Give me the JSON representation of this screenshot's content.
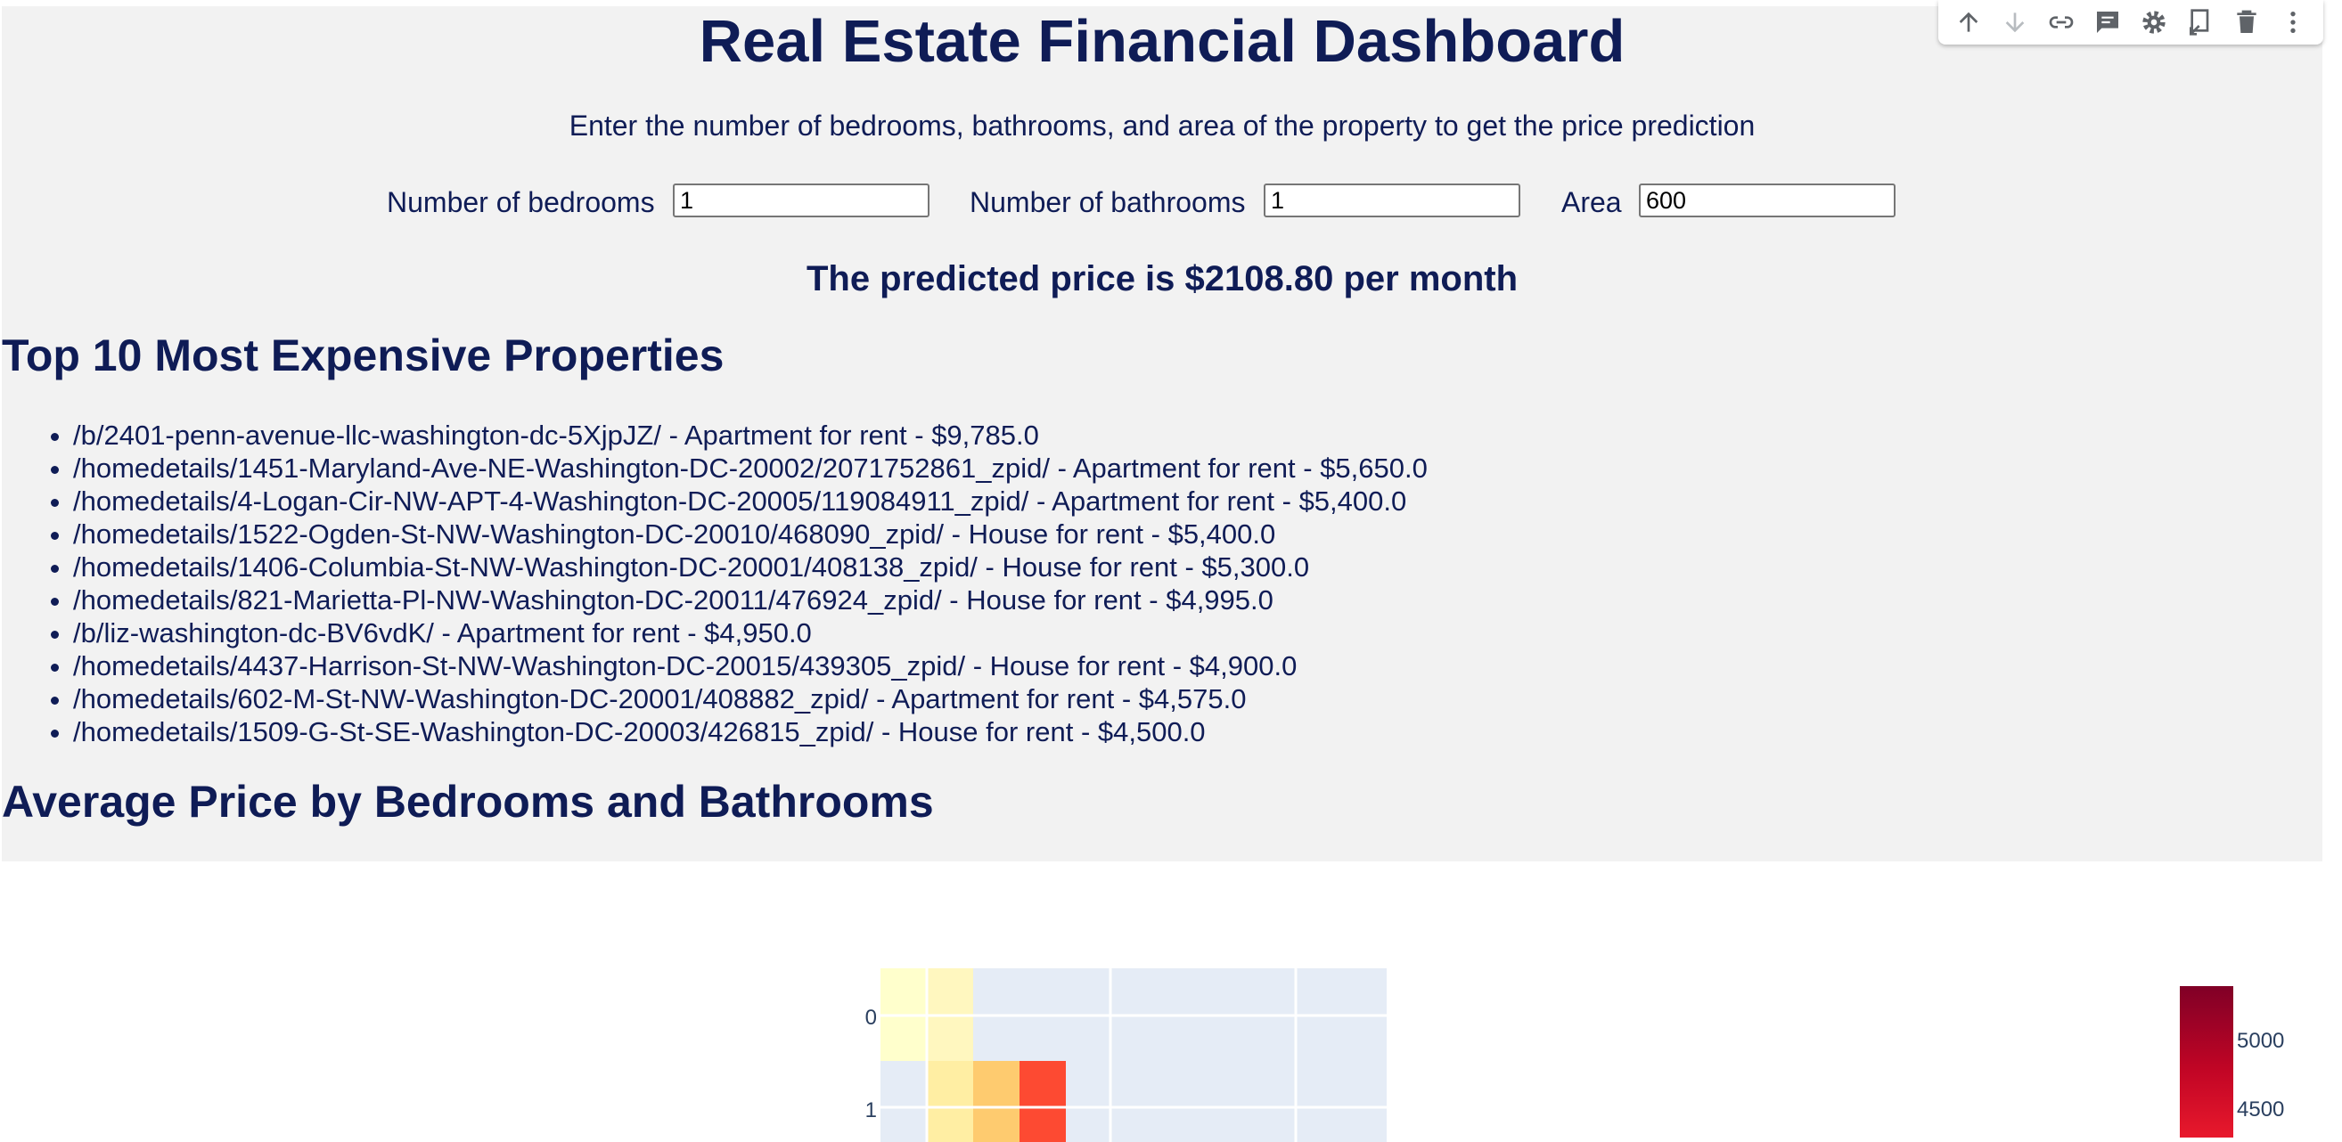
{
  "header": {
    "title": "Real Estate Financial Dashboard",
    "subtitle": "Enter the number of bedrooms, bathrooms, and area of the property to get the price prediction"
  },
  "form": {
    "bedrooms_label": "Number of bedrooms",
    "bedrooms_value": "1",
    "bathrooms_label": "Number of bathrooms",
    "bathrooms_value": "1",
    "area_label": "Area",
    "area_value": "600"
  },
  "prediction": {
    "text": "The predicted price is $2108.80 per month"
  },
  "top_properties": {
    "heading": "Top 10 Most Expensive Properties",
    "items": [
      "/b/2401-penn-avenue-llc-washington-dc-5XjpJZ/ - Apartment for rent - $9,785.0",
      "/homedetails/1451-Maryland-Ave-NE-Washington-DC-20002/2071752861_zpid/ - Apartment for rent - $5,650.0",
      "/homedetails/4-Logan-Cir-NW-APT-4-Washington-DC-20005/119084911_zpid/ - Apartment for rent - $5,400.0",
      "/homedetails/1522-Ogden-St-NW-Washington-DC-20010/468090_zpid/ - House for rent - $5,400.0",
      "/homedetails/1406-Columbia-St-NW-Washington-DC-20001/408138_zpid/ - House for rent - $5,300.0",
      "/homedetails/821-Marietta-Pl-NW-Washington-DC-20011/476924_zpid/ - House for rent - $4,995.0",
      "/b/liz-washington-dc-BV6vdK/ - Apartment for rent - $4,950.0",
      "/homedetails/4437-Harrison-St-NW-Washington-DC-20015/439305_zpid/ - House for rent - $4,900.0",
      "/homedetails/602-M-St-NW-Washington-DC-20001/408882_zpid/ - Apartment for rent - $4,575.0",
      "/homedetails/1509-G-St-SE-Washington-DC-20003/426815_zpid/ - House for rent - $4,500.0"
    ]
  },
  "average_price": {
    "heading": "Average Price by Bedrooms and Bathrooms"
  },
  "modebar": {
    "icons": [
      "arrow-up-icon",
      "arrow-down-icon",
      "link-icon",
      "comment-icon",
      "gear-icon",
      "copy-icon",
      "trash-icon",
      "more-icon"
    ]
  },
  "colors": {
    "text": "#0f1c56",
    "panel_bg": "#f2f2f2",
    "plot_bg": "#e5ecf6"
  },
  "chart_data": {
    "type": "heatmap",
    "y_ticks": [
      "0",
      "1"
    ],
    "colorbar_ticks": [
      5000,
      4500
    ],
    "colorscale": "YlOrRd",
    "cells": [
      {
        "row": 0,
        "col": 0,
        "color": "#ffffcc"
      },
      {
        "row": 0,
        "col": 1,
        "color": "#fff7bf"
      },
      {
        "row": 1,
        "col": 1,
        "color": "#ffeea3"
      },
      {
        "row": 1,
        "col": 2,
        "color": "#fecb6f"
      },
      {
        "row": 1,
        "col": 3,
        "color": "#fd4a32"
      }
    ]
  }
}
